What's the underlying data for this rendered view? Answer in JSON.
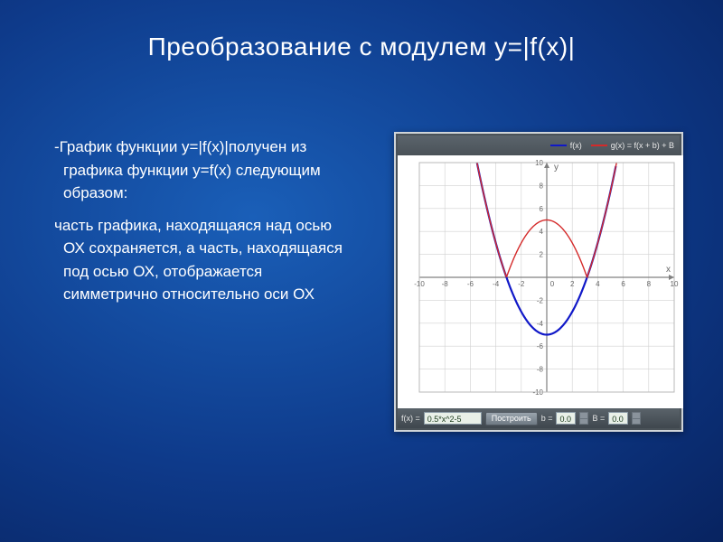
{
  "title": "Преобразование с модулем y=|f(x)|",
  "paragraphs": {
    "p1": "-График функции y=|f(x)|получен из графика функции y=f(x) следующим образом:",
    "p2": "часть графика, находящаяся над осью ОХ сохраняется, а часть, находящаяся под осью ОХ, отображается симметрично относительно оси ОХ"
  },
  "chart": {
    "type": "line",
    "legend_f": "f(x)",
    "legend_g": "g(x) = f(x + b) + B",
    "f_color": "#1018c8",
    "g_color": "#d42a2a",
    "grid_color": "#d0d0d0",
    "axis_color": "#808080",
    "background_color": "#ffffff",
    "xlim": [
      -10,
      10
    ],
    "ylim": [
      -10,
      10
    ],
    "tick_step": 2,
    "x_axis_label": "x",
    "y_axis_label": "y",
    "f_formula_note": "0.5*x^2 - 5",
    "f_points": [
      [
        -5.48,
        10
      ],
      [
        -5,
        7.5
      ],
      [
        -4,
        3
      ],
      [
        -3,
        -0.5
      ],
      [
        -2,
        -3
      ],
      [
        -1,
        -4.5
      ],
      [
        0,
        -5
      ],
      [
        1,
        -4.5
      ],
      [
        2,
        -3
      ],
      [
        3,
        -0.5
      ],
      [
        4,
        3
      ],
      [
        5,
        7.5
      ],
      [
        5.48,
        10
      ]
    ],
    "g_points": [
      [
        -5.48,
        10
      ],
      [
        -5,
        7.5
      ],
      [
        -4,
        3
      ],
      [
        -3.16,
        0
      ],
      [
        -3,
        0.5
      ],
      [
        -2,
        3
      ],
      [
        -1,
        4.5
      ],
      [
        0,
        5
      ],
      [
        1,
        4.5
      ],
      [
        2,
        3
      ],
      [
        3,
        0.5
      ],
      [
        3.16,
        0
      ],
      [
        4,
        3
      ],
      [
        5,
        7.5
      ],
      [
        5.48,
        10
      ]
    ],
    "line_width_f": 2.2,
    "line_width_g": 1.4
  },
  "controls": {
    "f_label": "f(x) =",
    "f_value": "0.5*x^2-5",
    "build_btn": "Построить",
    "b_label": "b =",
    "b_value": "0.0",
    "B_label": "B =",
    "B_value": "0.0"
  }
}
